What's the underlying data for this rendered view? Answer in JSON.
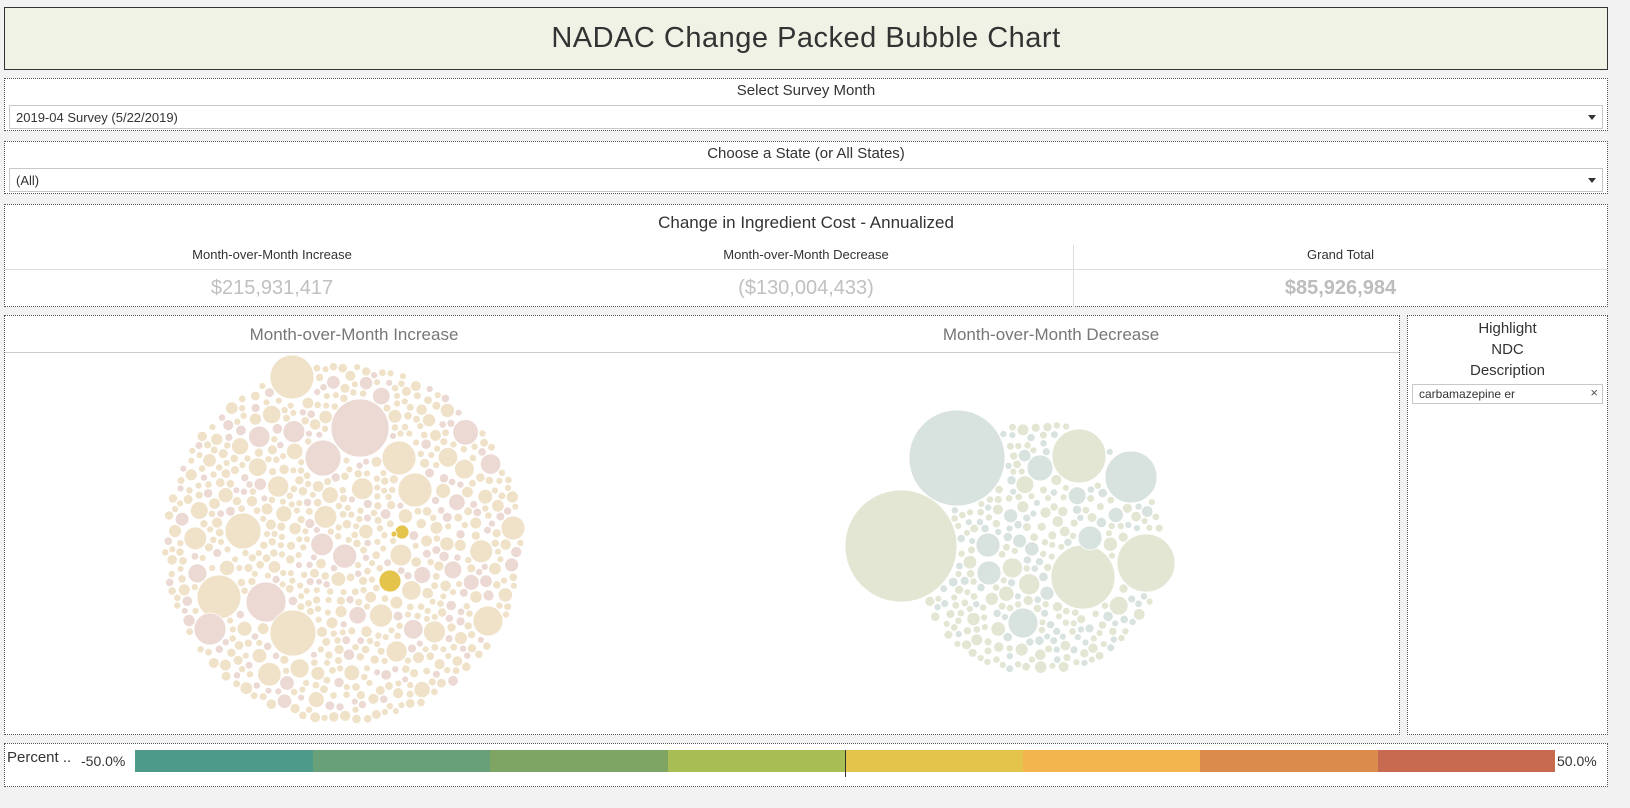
{
  "title": "NADAC Change Packed Bubble Chart",
  "filters": {
    "survey": {
      "label": "Select Survey Month",
      "value": "2019-04 Survey (5/22/2019)"
    },
    "state": {
      "label": "Choose a State (or All States)",
      "value": "(All)"
    }
  },
  "summary": {
    "title": "Change in Ingredient Cost - Annualized",
    "increase": {
      "label": "Month-over-Month Increase",
      "value": "$215,931,417"
    },
    "decrease": {
      "label": "Month-over-Month Decrease",
      "value": "($130,004,433)"
    },
    "total": {
      "label": "Grand Total",
      "value": "$85,926,984"
    }
  },
  "chart": {
    "increase_label": "Month-over-Month Increase",
    "decrease_label": "Month-over-Month Decrease"
  },
  "highlight": {
    "title_line1": "Highlight",
    "title_line2": "NDC",
    "title_line3": "Description",
    "value": "carbamazepine er",
    "clear_glyph": "×"
  },
  "legend": {
    "title": "Percent ..",
    "min_label": "-50.0%",
    "max_label": "50.0%",
    "colors": [
      "#4d9a8a",
      "#67a079",
      "#7fa565",
      "#a9bd55",
      "#e5c44b",
      "#f3b54d",
      "#db8c4c",
      "#c86a50"
    ]
  },
  "colors": {
    "increase_bubble": "#f0e2c8",
    "increase_bubble_pink": "#ecd9d4",
    "decrease_bubble": "#e2e6d3",
    "decrease_bubble_blue": "#d8e3e0",
    "highlighted_bubble": "#e5c44b"
  }
}
